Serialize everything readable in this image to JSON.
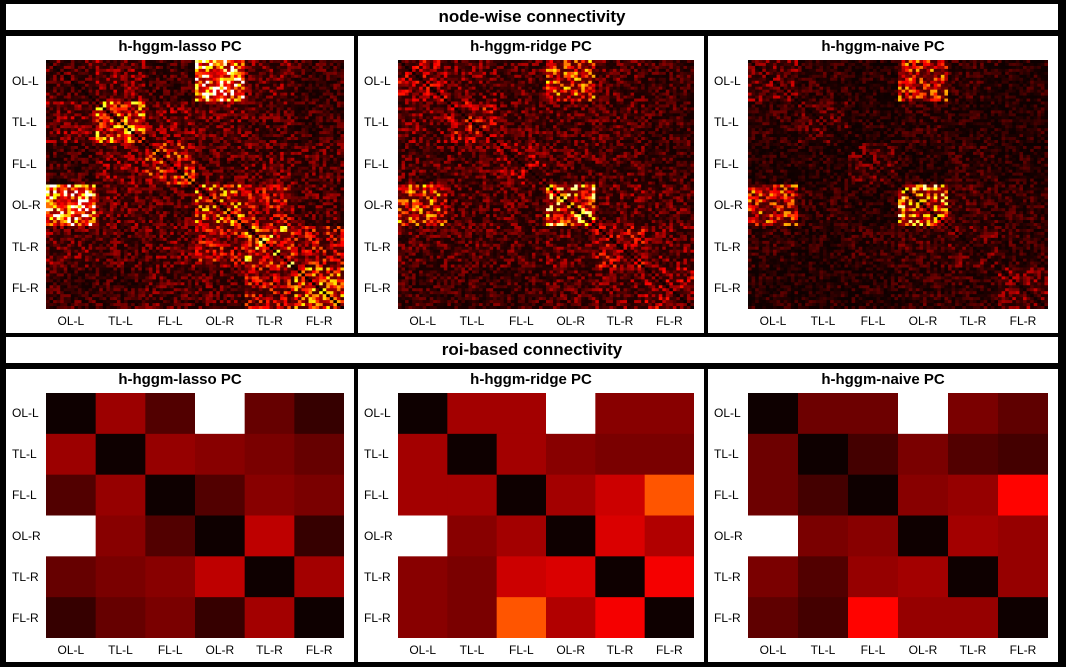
{
  "sections": {
    "top_title": "node-wise connectivity",
    "bottom_title": "roi-based connectivity"
  },
  "chart_data": [
    {
      "type": "heatmap",
      "title": "h-hggm-lasso PC",
      "section": "node-wise connectivity",
      "categories": [
        "OL-L",
        "TL-L",
        "FL-L",
        "OL-R",
        "TL-R",
        "FL-R"
      ],
      "colormap": "hot",
      "color_range": [
        0,
        1
      ],
      "block_values": [
        [
          0.15,
          0.2,
          0.12,
          0.8,
          0.18,
          0.12
        ],
        [
          0.2,
          0.5,
          0.2,
          0.18,
          0.15,
          0.12
        ],
        [
          0.12,
          0.2,
          0.35,
          0.15,
          0.18,
          0.15
        ],
        [
          0.8,
          0.18,
          0.15,
          0.45,
          0.3,
          0.15
        ],
        [
          0.18,
          0.15,
          0.18,
          0.3,
          0.5,
          0.3
        ],
        [
          0.12,
          0.12,
          0.15,
          0.15,
          0.3,
          0.45
        ]
      ]
    },
    {
      "type": "heatmap",
      "title": "h-hggm-ridge PC",
      "section": "node-wise connectivity",
      "categories": [
        "OL-L",
        "TL-L",
        "FL-L",
        "OL-R",
        "TL-R",
        "FL-R"
      ],
      "colormap": "hot",
      "color_range": [
        0,
        1
      ],
      "block_values": [
        [
          0.25,
          0.18,
          0.15,
          0.42,
          0.15,
          0.12
        ],
        [
          0.18,
          0.28,
          0.15,
          0.15,
          0.15,
          0.12
        ],
        [
          0.15,
          0.15,
          0.25,
          0.15,
          0.15,
          0.12
        ],
        [
          0.42,
          0.15,
          0.15,
          0.55,
          0.18,
          0.15
        ],
        [
          0.15,
          0.15,
          0.15,
          0.18,
          0.28,
          0.18
        ],
        [
          0.12,
          0.12,
          0.12,
          0.15,
          0.18,
          0.25
        ]
      ]
    },
    {
      "type": "heatmap",
      "title": "h-hggm-naive PC",
      "section": "node-wise connectivity",
      "categories": [
        "OL-L",
        "TL-L",
        "FL-L",
        "OL-R",
        "TL-R",
        "FL-R"
      ],
      "colormap": "hot",
      "color_range": [
        0,
        1
      ],
      "block_values": [
        [
          0.18,
          0.1,
          0.08,
          0.38,
          0.1,
          0.08
        ],
        [
          0.1,
          0.15,
          0.08,
          0.1,
          0.08,
          0.08
        ],
        [
          0.08,
          0.08,
          0.15,
          0.08,
          0.1,
          0.08
        ],
        [
          0.38,
          0.1,
          0.08,
          0.55,
          0.12,
          0.1
        ],
        [
          0.1,
          0.08,
          0.1,
          0.12,
          0.15,
          0.1
        ],
        [
          0.08,
          0.08,
          0.08,
          0.1,
          0.1,
          0.18
        ]
      ]
    },
    {
      "type": "heatmap",
      "title": "h-hggm-lasso PC",
      "section": "roi-based connectivity",
      "categories": [
        "OL-L",
        "TL-L",
        "FL-L",
        "OL-R",
        "TL-R",
        "FL-R"
      ],
      "colormap": "hot",
      "color_range": [
        0,
        1
      ],
      "values": [
        [
          0.02,
          0.23,
          0.12,
          1.0,
          0.15,
          0.08
        ],
        [
          0.23,
          0.02,
          0.22,
          0.2,
          0.18,
          0.15
        ],
        [
          0.12,
          0.22,
          0.02,
          0.12,
          0.2,
          0.18
        ],
        [
          1.0,
          0.2,
          0.12,
          0.02,
          0.28,
          0.08
        ],
        [
          0.15,
          0.18,
          0.2,
          0.28,
          0.02,
          0.24
        ],
        [
          0.08,
          0.15,
          0.18,
          0.08,
          0.24,
          0.02
        ]
      ]
    },
    {
      "type": "heatmap",
      "title": "h-hggm-ridge PC",
      "section": "roi-based connectivity",
      "categories": [
        "OL-L",
        "TL-L",
        "FL-L",
        "OL-R",
        "TL-R",
        "FL-R"
      ],
      "colormap": "hot",
      "color_range": [
        0,
        1
      ],
      "values": [
        [
          0.02,
          0.24,
          0.24,
          1.0,
          0.2,
          0.2
        ],
        [
          0.24,
          0.02,
          0.24,
          0.2,
          0.18,
          0.18
        ],
        [
          0.24,
          0.24,
          0.02,
          0.24,
          0.3,
          0.5
        ],
        [
          1.0,
          0.2,
          0.24,
          0.02,
          0.32,
          0.26
        ],
        [
          0.2,
          0.18,
          0.3,
          0.32,
          0.02,
          0.36
        ],
        [
          0.2,
          0.18,
          0.5,
          0.26,
          0.36,
          0.02
        ]
      ]
    },
    {
      "type": "heatmap",
      "title": "h-hggm-naive PC",
      "section": "roi-based connectivity",
      "categories": [
        "OL-L",
        "TL-L",
        "FL-L",
        "OL-R",
        "TL-R",
        "FL-R"
      ],
      "colormap": "hot",
      "color_range": [
        0,
        1
      ],
      "values": [
        [
          0.02,
          0.16,
          0.16,
          1.0,
          0.18,
          0.14
        ],
        [
          0.16,
          0.02,
          0.1,
          0.18,
          0.12,
          0.1
        ],
        [
          0.16,
          0.1,
          0.02,
          0.2,
          0.22,
          0.38
        ],
        [
          1.0,
          0.18,
          0.2,
          0.02,
          0.24,
          0.22
        ],
        [
          0.18,
          0.12,
          0.22,
          0.24,
          0.02,
          0.22
        ],
        [
          0.14,
          0.1,
          0.38,
          0.22,
          0.22,
          0.02
        ]
      ]
    }
  ]
}
